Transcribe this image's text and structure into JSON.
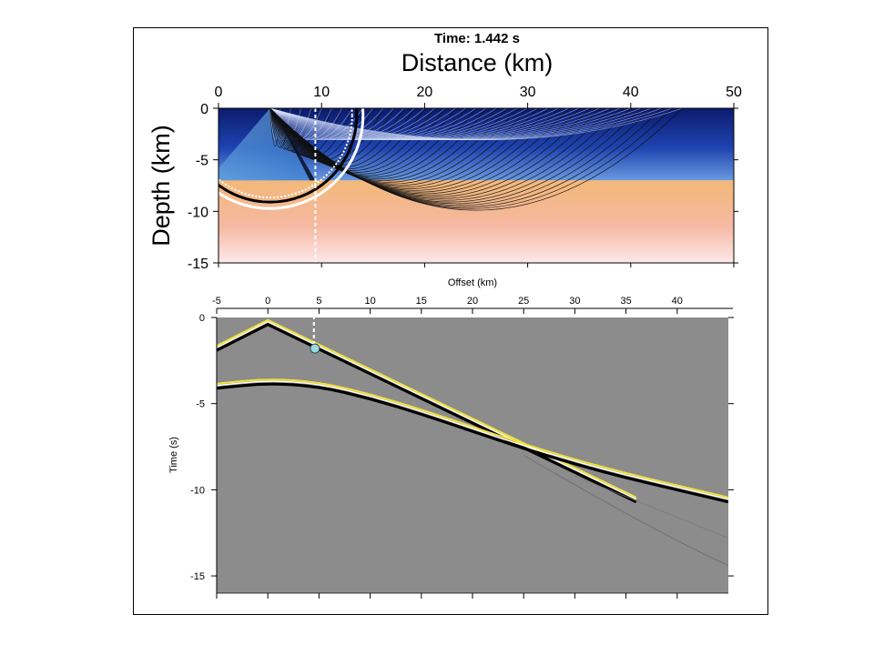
{
  "header": {
    "time_label": "Time: 1.442  s"
  },
  "chart_data": [
    {
      "type": "heatmap",
      "description_kind": "wavefield snapshot",
      "xlabel": "Distance (km)",
      "ylabel": "Depth (km)",
      "xlim": [
        0,
        50
      ],
      "ylim": [
        -15,
        0
      ],
      "xticks": [
        0,
        10,
        20,
        30,
        40,
        50
      ],
      "yticks": [
        0,
        -5,
        -10,
        -15
      ],
      "interface_depth": -7,
      "source": {
        "x": 5,
        "depth": 0
      },
      "receiver_x": 9.4,
      "layers": [
        {
          "top": 0,
          "bottom": -7,
          "colors": [
            "#0b1a6e",
            "#1e44b0",
            "#6a9ae0"
          ]
        },
        {
          "top": -7,
          "bottom": -15,
          "colors": [
            "#f3b878",
            "#f6b8a2",
            "#fde8ea"
          ]
        }
      ],
      "wavefront": {
        "center_x": 5,
        "radius_km": 9.5
      },
      "ray_end_x_surface": [
        6,
        7,
        8,
        9,
        10,
        11,
        12,
        13,
        14,
        15,
        16,
        17,
        18,
        19,
        20,
        21,
        22,
        23,
        24,
        25,
        26,
        27,
        28,
        29,
        30,
        31,
        32,
        33,
        34,
        35,
        36,
        37,
        38,
        39,
        40,
        41,
        42,
        43,
        44,
        45
      ],
      "grid": false
    },
    {
      "type": "line",
      "description_kind": "seismogram",
      "xlabel": "Offset (km)",
      "ylabel": "Time (s)",
      "xlim": [
        -5,
        45
      ],
      "ylim": [
        -16,
        0
      ],
      "xticks": [
        -5,
        0,
        5,
        10,
        15,
        20,
        25,
        30,
        35,
        40
      ],
      "yticks": [
        0,
        -5,
        -10,
        -15
      ],
      "receiver_offset": 4.5,
      "marker": {
        "x": 4.6,
        "y": -1.8
      },
      "series": [
        {
          "x": [
            -5,
            0,
            36
          ],
          "y": [
            -1.8,
            -0.3,
            -10.6
          ]
        },
        {
          "x": [
            -5,
            0,
            5,
            10,
            15,
            20,
            25,
            30,
            35,
            40,
            45
          ],
          "y": [
            -4.0,
            -3.7,
            -3.9,
            -4.6,
            -5.5,
            -6.5,
            -7.5,
            -8.4,
            -9.2,
            -9.9,
            -10.6
          ]
        }
      ],
      "grid": false
    }
  ]
}
